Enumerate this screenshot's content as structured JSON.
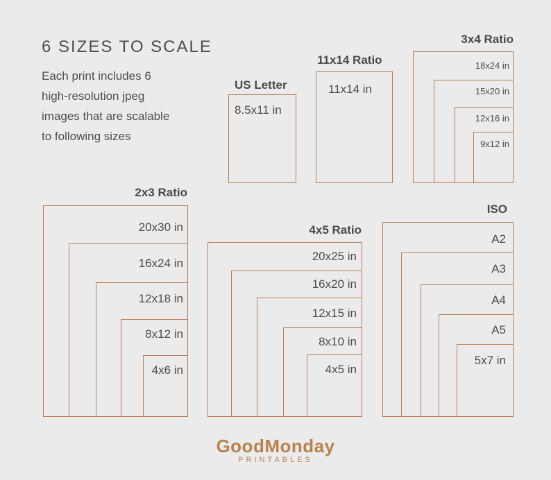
{
  "header": {
    "title": "6 SIZES TO SCALE",
    "description": [
      "Each print includes 6",
      "high-resolution jpeg",
      "images that are scalable",
      "to following sizes"
    ]
  },
  "groups": {
    "us_letter": {
      "title": "US Letter",
      "sizes": [
        "8.5x11 in"
      ]
    },
    "ratio_11x14": {
      "title": "11x14 Ratio",
      "sizes": [
        "11x14 in"
      ]
    },
    "ratio_3x4": {
      "title": "3x4 Ratio",
      "sizes": [
        "18x24 in",
        "15x20 in",
        "12x16 in",
        "9x12 in"
      ]
    },
    "ratio_2x3": {
      "title": "2x3 Ratio",
      "sizes": [
        "20x30 in",
        "16x24 in",
        "12x18 in",
        "8x12 in",
        "4x6 in"
      ]
    },
    "ratio_4x5": {
      "title": "4x5 Ratio",
      "sizes": [
        "20x25 in",
        "16x20 in",
        "12x15 in",
        "8x10 in",
        "4x5 in"
      ]
    },
    "iso": {
      "title": "ISO",
      "sizes": [
        "A2",
        "A3",
        "A4",
        "A5",
        "5x7 in"
      ]
    }
  },
  "brand": {
    "name": "GoodMonday",
    "tagline": "PRINTABLES",
    "color": "#b9834f",
    "frame_color": "#b77f56",
    "background": "#ebebeb"
  }
}
